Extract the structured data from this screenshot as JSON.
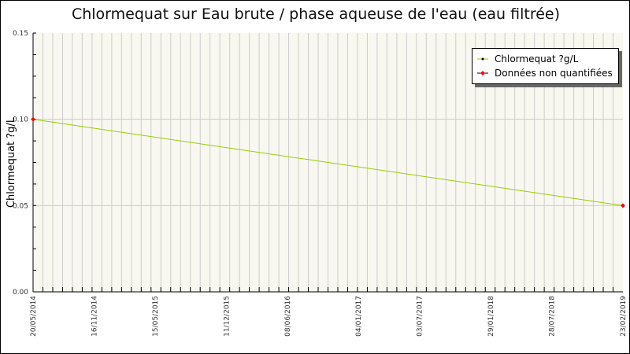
{
  "chart_data": {
    "type": "line",
    "title": "Chlormequat sur Eau brute / phase aqueuse de l'eau (eau filtrée)",
    "xlabel": "",
    "ylabel": "Chlormequat ?g/L",
    "ylim": [
      0,
      0.15
    ],
    "yticks": [
      "0.00",
      "0.05",
      "0.10",
      "0.15"
    ],
    "xlim": [
      "20/05/2014",
      "23/02/2019"
    ],
    "xticks": [
      "20/05/2014",
      "16/11/2014",
      "15/05/2015",
      "11/12/2015",
      "08/06/2016",
      "04/01/2017",
      "03/07/2017",
      "29/01/2018",
      "28/07/2018",
      "23/02/2019"
    ],
    "grid": true,
    "legend_position": "top-right",
    "series": [
      {
        "name": "Chlormequat ?g/L",
        "color": "#99cc00",
        "x": [
          "20/05/2014",
          "23/02/2019"
        ],
        "y": [
          0.1,
          0.05
        ]
      }
    ],
    "non_quantified": {
      "name": "Données non quantifiées",
      "color": "#ff0000",
      "x": [
        "20/05/2014",
        "23/02/2019"
      ],
      "y": [
        0.1,
        0.05
      ]
    },
    "colors": {
      "plot_bg": "#f8f8f0",
      "grid": "#cccccc"
    }
  }
}
